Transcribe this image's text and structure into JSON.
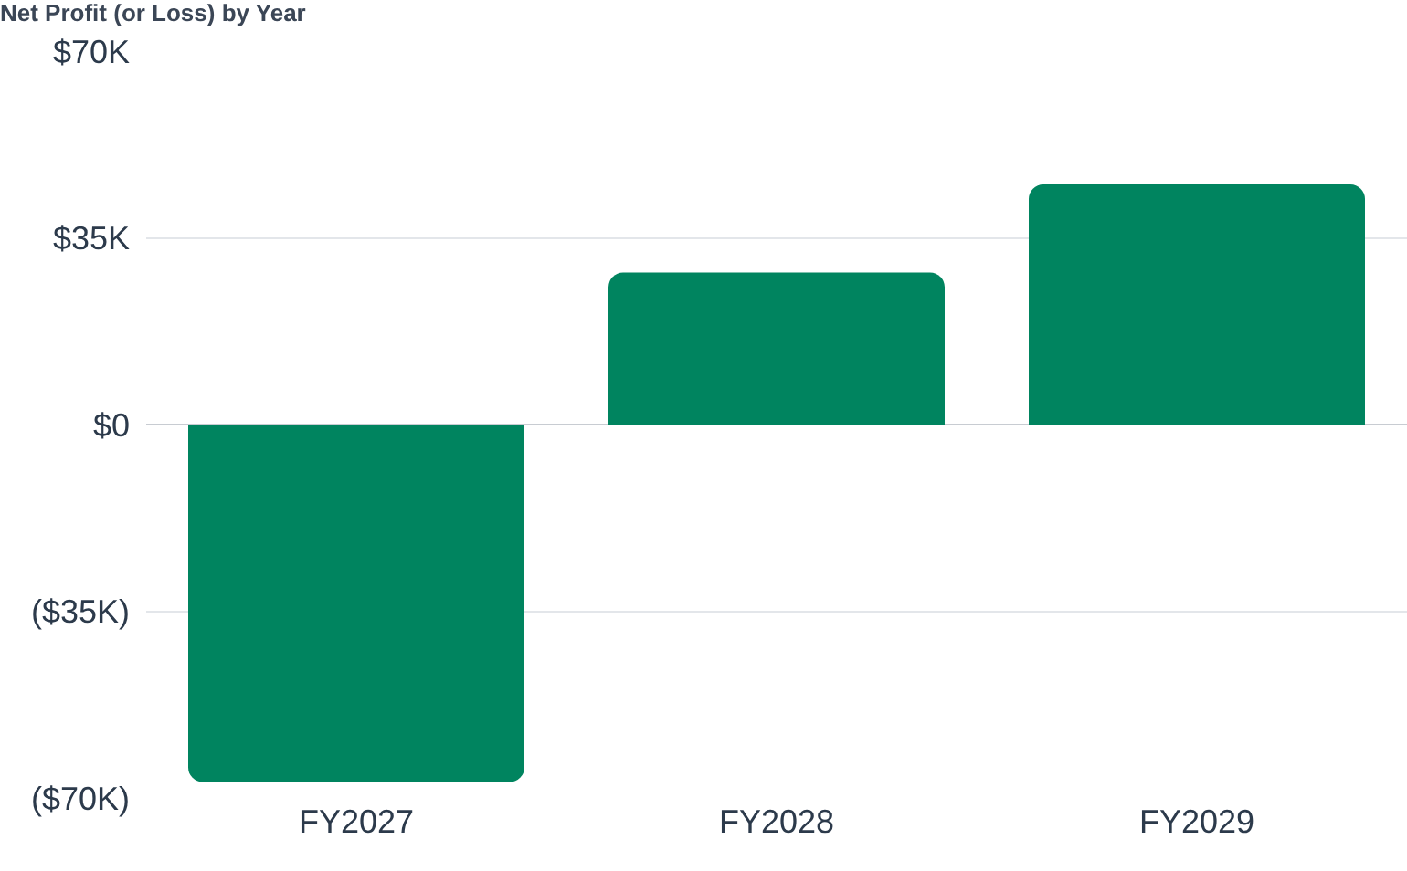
{
  "chart_data": {
    "type": "bar",
    "title": "Net Profit (or Loss) by Year",
    "categories": [
      "FY2027",
      "FY2028",
      "FY2029"
    ],
    "values": [
      -67000,
      28500,
      45000
    ],
    "color": "#00845f",
    "ylim": [
      -70000,
      70000
    ],
    "yticks": [
      {
        "value": -70000,
        "label": "($70K)"
      },
      {
        "value": -35000,
        "label": "($35K)"
      },
      {
        "value": 0,
        "label": "$0"
      },
      {
        "value": 35000,
        "label": "$35K"
      },
      {
        "value": 70000,
        "label": "$70K"
      }
    ],
    "grid": "y"
  }
}
